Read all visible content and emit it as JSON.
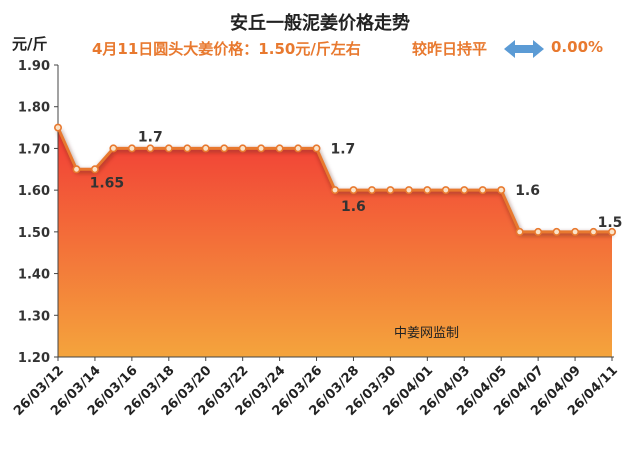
{
  "chart_data": {
    "type": "area",
    "title": "安丘一般泥姜价格走势",
    "subtitle": "4月11日圆头大姜价格：1.50元/斤左右",
    "comparison": "较昨日持平",
    "change": "0.00%",
    "ylabel": "元/斤",
    "ylim": [
      1.2,
      1.9
    ],
    "yticks": [
      "1.20",
      "1.30",
      "1.40",
      "1.50",
      "1.60",
      "1.70",
      "1.80",
      "1.90"
    ],
    "xtick_labels": [
      "26/03/12",
      "26/03/14",
      "26/03/16",
      "26/03/18",
      "26/03/20",
      "26/03/22",
      "26/03/24",
      "26/03/26",
      "26/03/28",
      "26/03/30",
      "26/04/01",
      "26/04/03",
      "26/04/05",
      "26/04/07",
      "26/04/09",
      "26/04/11"
    ],
    "x": [
      "26/03/12",
      "26/03/13",
      "26/03/14",
      "26/03/15",
      "26/03/16",
      "26/03/17",
      "26/03/18",
      "26/03/19",
      "26/03/20",
      "26/03/21",
      "26/03/22",
      "26/03/23",
      "26/03/24",
      "26/03/25",
      "26/03/26",
      "26/03/27",
      "26/03/28",
      "26/03/29",
      "26/03/30",
      "26/03/31",
      "26/04/01",
      "26/04/02",
      "26/04/03",
      "26/04/04",
      "26/04/05",
      "26/04/06",
      "26/04/07",
      "26/04/08",
      "26/04/09",
      "26/04/10",
      "26/04/11"
    ],
    "values": [
      1.75,
      1.65,
      1.65,
      1.7,
      1.7,
      1.7,
      1.7,
      1.7,
      1.7,
      1.7,
      1.7,
      1.7,
      1.7,
      1.7,
      1.7,
      1.6,
      1.6,
      1.6,
      1.6,
      1.6,
      1.6,
      1.6,
      1.6,
      1.6,
      1.6,
      1.5,
      1.5,
      1.5,
      1.5,
      1.5,
      1.5
    ],
    "data_labels": [
      {
        "index": 2,
        "text": "1.65"
      },
      {
        "index": 4,
        "text": "1.7"
      },
      {
        "index": 14,
        "text": "1.7"
      },
      {
        "index": 15,
        "text": "1.6"
      },
      {
        "index": 24,
        "text": "1.6"
      },
      {
        "index": 30,
        "text": "1.5"
      }
    ],
    "watermark": "中姜网监制",
    "grid": false,
    "line_color": "#e8792f",
    "fill_top_color": "#f23c36",
    "fill_bottom_color": "#f4a43c"
  }
}
